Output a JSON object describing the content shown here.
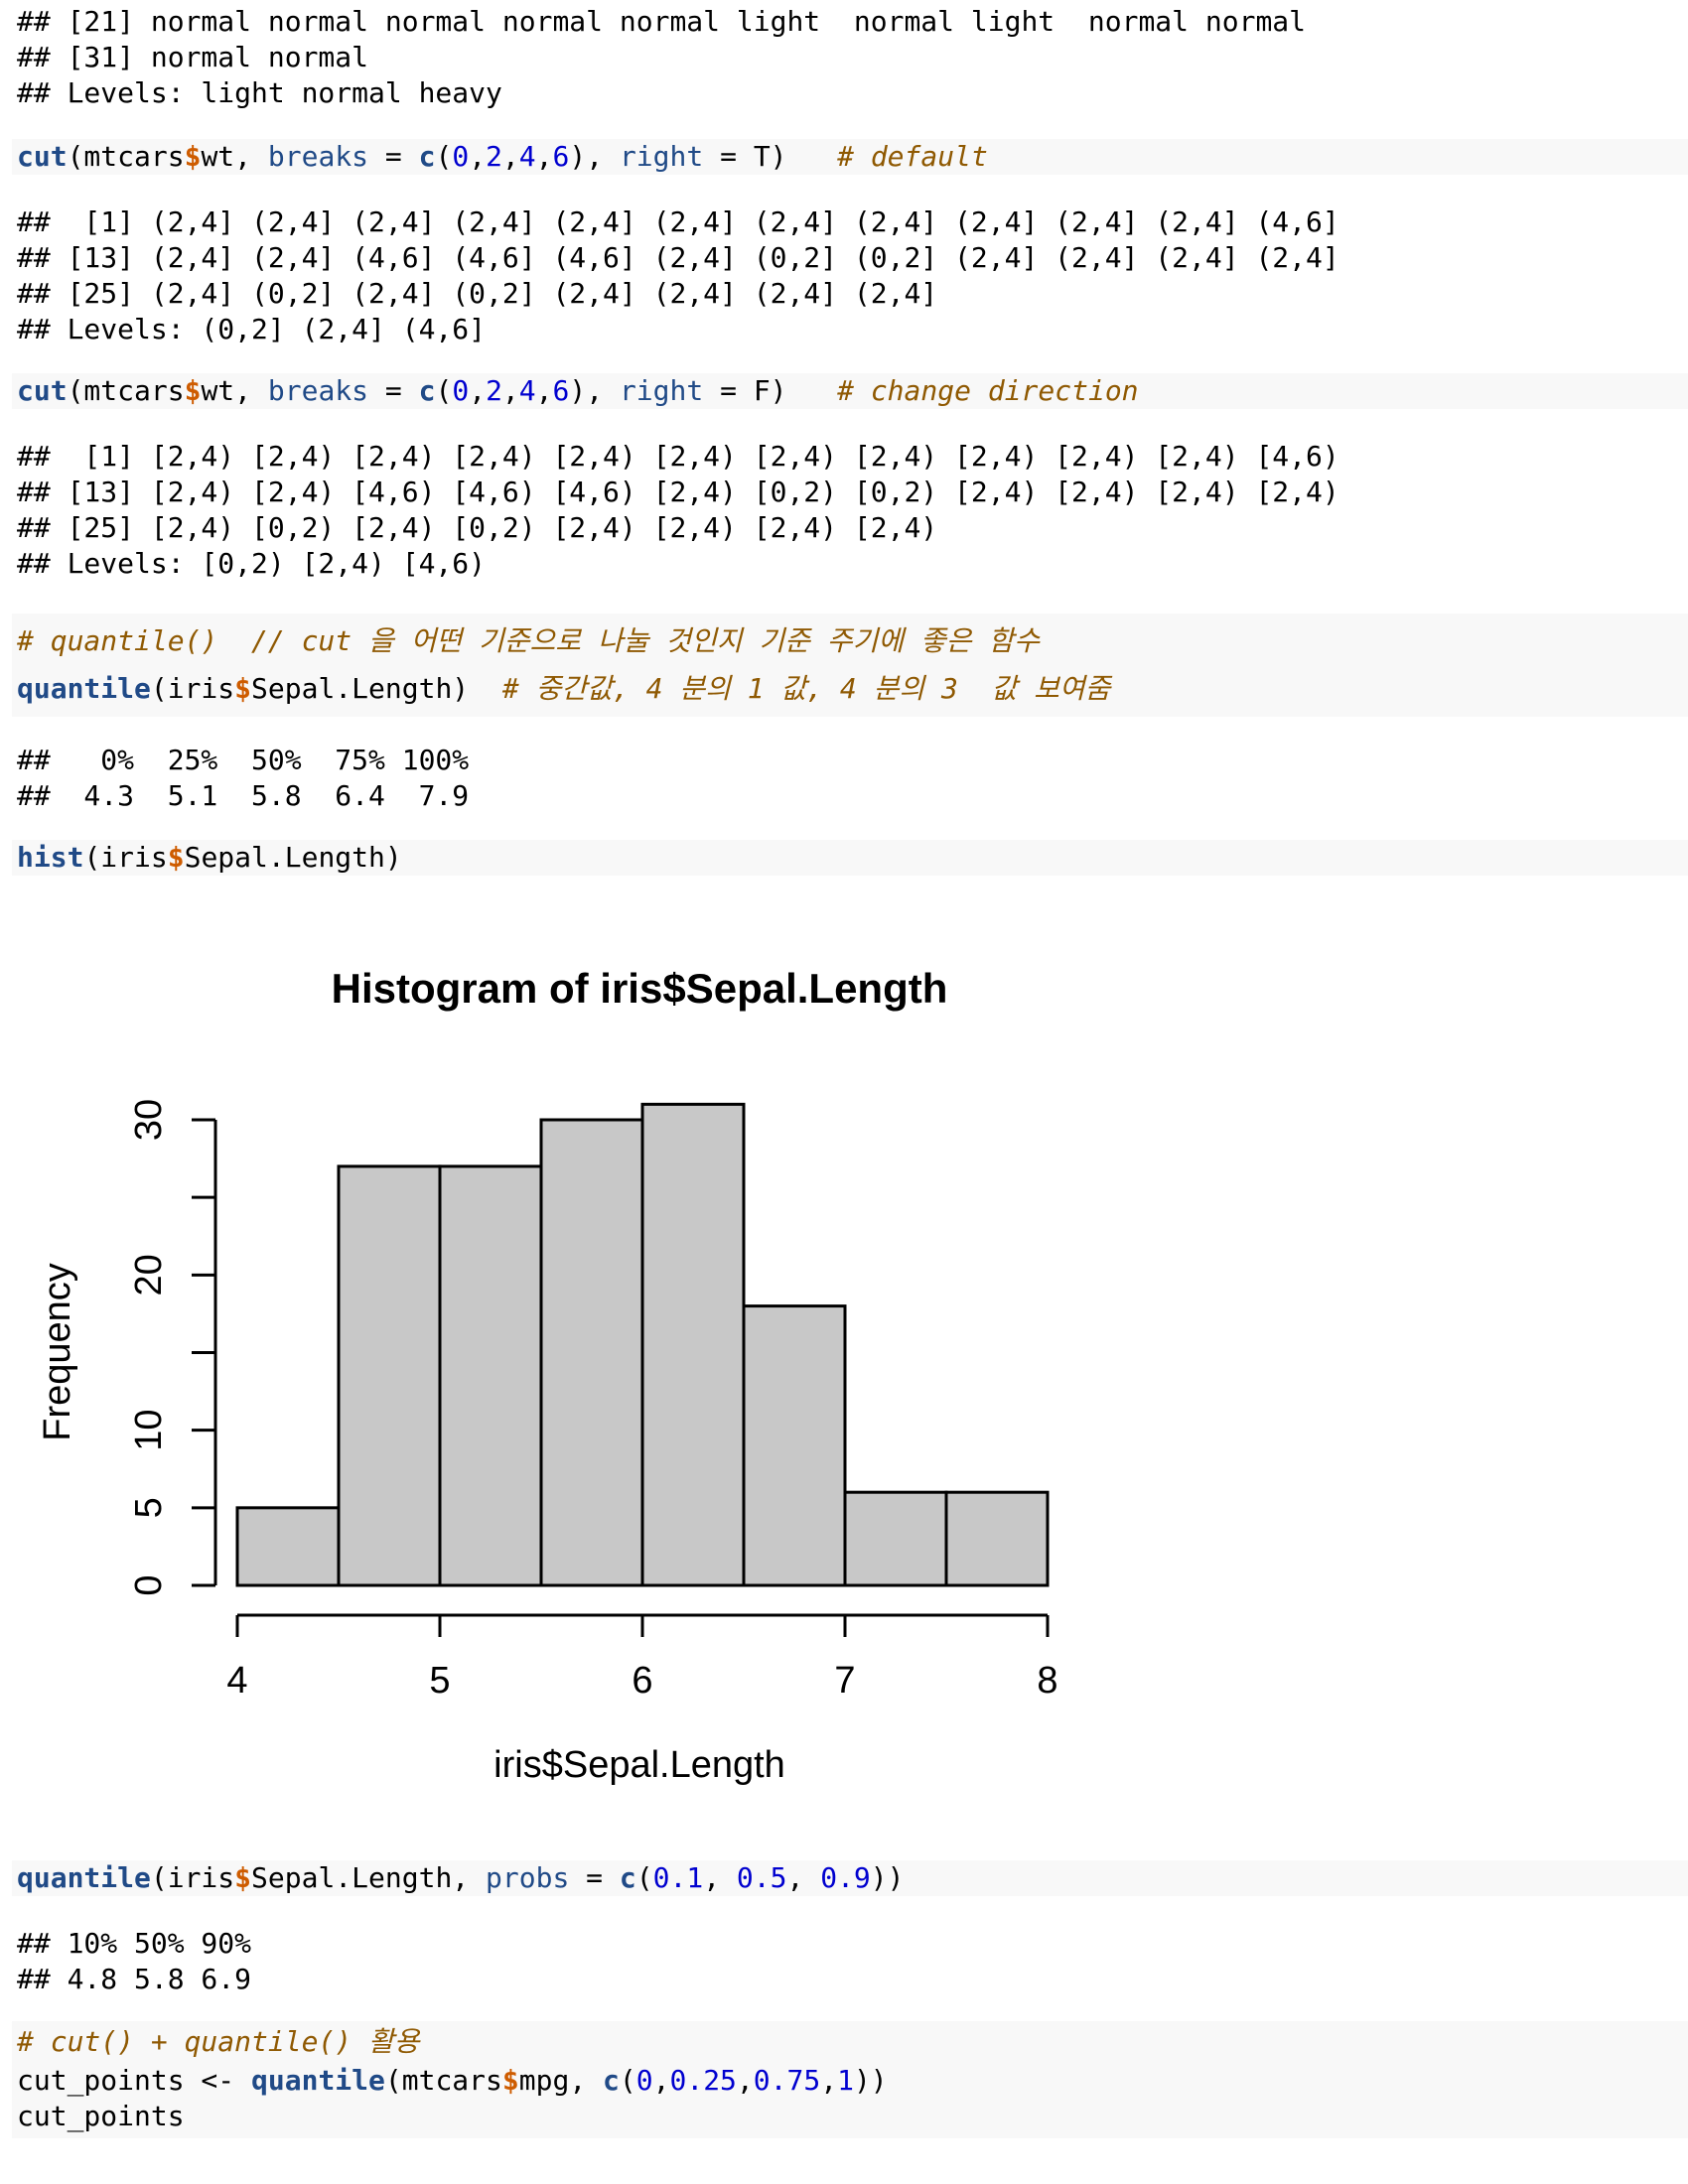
{
  "output_top": [
    "## [21] normal normal normal normal normal light  normal light  normal normal",
    "## [31] normal normal",
    "## Levels: light normal heavy"
  ],
  "cut_default": {
    "f": "cut",
    "a1": "(mtcars",
    "a2": "wt, ",
    "k1": "breaks",
    "eq1": " = ",
    "f2": "c",
    "p1": "(",
    "n1": "0",
    "c1": ",",
    "n2": "2",
    "c2": ",",
    "n3": "4",
    "c3": ",",
    "n4": "6",
    "p2": "), ",
    "k2": "right",
    "eq2": " = ",
    "v": "T)",
    "sp": "   ",
    "comment": "# default"
  },
  "cut_default_output": [
    "##  [1] (2,4] (2,4] (2,4] (2,4] (2,4] (2,4] (2,4] (2,4] (2,4] (2,4] (2,4] (4,6]",
    "## [13] (2,4] (2,4] (4,6] (4,6] (4,6] (2,4] (0,2] (0,2] (2,4] (2,4] (2,4] (2,4]",
    "## [25] (2,4] (0,2] (2,4] (0,2] (2,4] (2,4] (2,4] (2,4]",
    "## Levels: (0,2] (2,4] (4,6]"
  ],
  "cut_right_f": {
    "f": "cut",
    "a1": "(mtcars",
    "a2": "wt, ",
    "k1": "breaks",
    "eq1": " = ",
    "f2": "c",
    "p1": "(",
    "n1": "0",
    "c1": ",",
    "n2": "2",
    "c2": ",",
    "n3": "4",
    "c3": ",",
    "n4": "6",
    "p2": "), ",
    "k2": "right",
    "eq2": " = ",
    "v": "F)",
    "sp": "   ",
    "comment": "# change direction"
  },
  "cut_right_f_output": [
    "##  [1] [2,4) [2,4) [2,4) [2,4) [2,4) [2,4) [2,4) [2,4) [2,4) [2,4) [2,4) [4,6)",
    "## [13] [2,4) [2,4) [4,6) [4,6) [4,6) [2,4) [0,2) [0,2) [2,4) [2,4) [2,4) [2,4)",
    "## [25] [2,4) [0,2) [2,4) [0,2) [2,4) [2,4) [2,4) [2,4)",
    "## Levels: [0,2) [2,4) [4,6)"
  ],
  "quantile_comment": "# quantile()  // cut 을 어떤 기준으로 나눌 것인지 기준 주기에 좋은 함수",
  "quantile_call": {
    "f": "quantile",
    "a1": "(iris",
    "a2": "Sepal.Length)  ",
    "comment": "# 중간값, 4 분의 1 값, 4 분의 3  값 보여줌"
  },
  "quantile_output": [
    "##   0%  25%  50%  75% 100%",
    "##  4.3  5.1  5.8  6.4  7.9"
  ],
  "hist_call": {
    "f": "hist",
    "a1": "(iris",
    "a2": "Sepal.Length)"
  },
  "symbols": {
    "dollar": "$"
  },
  "chart_data": {
    "type": "bar",
    "title": "Histogram of iris$Sepal.Length",
    "xlabel": "iris$Sepal.Length",
    "ylabel": "Frequency",
    "bins": [
      [
        4.0,
        4.5
      ],
      [
        4.5,
        5.0
      ],
      [
        5.0,
        5.5
      ],
      [
        5.5,
        6.0
      ],
      [
        6.0,
        6.5
      ],
      [
        6.5,
        7.0
      ],
      [
        7.0,
        7.5
      ],
      [
        7.5,
        8.0
      ]
    ],
    "values": [
      5,
      27,
      27,
      30,
      31,
      18,
      6,
      6
    ],
    "xlim": [
      4,
      8
    ],
    "ylim": [
      0,
      30
    ],
    "x_ticks": [
      "4",
      "5",
      "6",
      "7",
      "8"
    ],
    "y_ticks": [
      "0",
      "5",
      "10",
      "20",
      "30"
    ],
    "bar_color": "#c8c8c8",
    "grid": false
  },
  "quantile_probs_call": {
    "f": "quantile",
    "a1": "(iris",
    "a2": "Sepal.Length, ",
    "k": "probs",
    "eq": " = ",
    "f2": "c",
    "p1": "(",
    "n1": "0.1",
    "c1": ", ",
    "n2": "0.5",
    "c2": ", ",
    "n3": "0.9",
    "p2": "))"
  },
  "quantile_probs_output": [
    "## 10% 50% 90%",
    "## 4.8 5.8 6.9"
  ],
  "cut_quantile_comment": "# cut() + quantile() 활용",
  "cut_points_assign": {
    "lhs": "cut_points <- ",
    "f": "quantile",
    "a1": "(mtcars",
    "a2": "mpg, ",
    "f2": "c",
    "p1": "(",
    "n1": "0",
    "c1": ",",
    "n2": "0.25",
    "c2": ",",
    "n3": "0.75",
    "c3": ",",
    "n4": "1",
    "p2": "))"
  },
  "cut_points_print": "cut_points"
}
